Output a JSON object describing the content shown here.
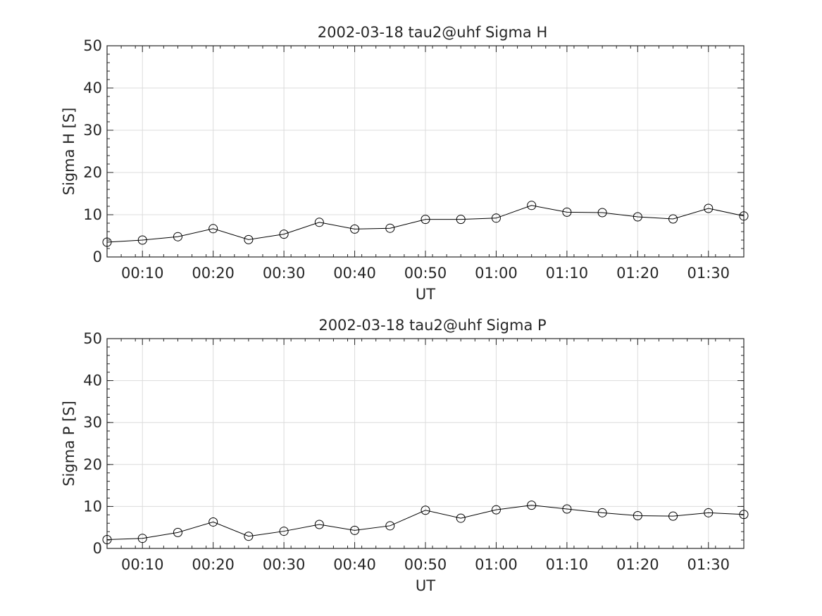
{
  "chart_data": [
    {
      "type": "line",
      "title": "2002-03-18  tau2@uhf Sigma H",
      "xlabel": "UT",
      "ylabel": "Sigma H [S]",
      "x": [
        "00:05",
        "00:10",
        "00:15",
        "00:20",
        "00:25",
        "00:30",
        "00:35",
        "00:40",
        "00:45",
        "00:50",
        "00:55",
        "01:00",
        "01:05",
        "01:10",
        "01:15",
        "01:20",
        "01:25",
        "01:30",
        "01:35"
      ],
      "series": [
        {
          "values": [
            3.5,
            4.0,
            4.8,
            6.7,
            4.1,
            5.4,
            8.2,
            6.6,
            6.8,
            8.9,
            8.9,
            9.2,
            12.2,
            10.6,
            10.5,
            9.5,
            9.0,
            11.5,
            9.7
          ]
        }
      ],
      "xlim": [
        "00:05",
        "01:35"
      ],
      "ylim": [
        0,
        50
      ],
      "xticks": [
        "00:10",
        "00:20",
        "00:30",
        "00:40",
        "00:50",
        "01:00",
        "01:10",
        "01:20",
        "01:30"
      ],
      "yticks": [
        0,
        10,
        20,
        30,
        40,
        50
      ],
      "grid": true,
      "marker": "open-circle",
      "line_color": "#000000"
    },
    {
      "type": "line",
      "title": "2002-03-18  tau2@uhf Sigma P",
      "xlabel": "UT",
      "ylabel": "Sigma P [S]",
      "x": [
        "00:05",
        "00:10",
        "00:15",
        "00:20",
        "00:25",
        "00:30",
        "00:35",
        "00:40",
        "00:45",
        "00:50",
        "00:55",
        "01:00",
        "01:05",
        "01:10",
        "01:15",
        "01:20",
        "01:25",
        "01:30",
        "01:35"
      ],
      "series": [
        {
          "values": [
            2.1,
            2.4,
            3.8,
            6.3,
            2.9,
            4.1,
            5.7,
            4.3,
            5.4,
            9.1,
            7.2,
            9.2,
            10.3,
            9.4,
            8.5,
            7.8,
            7.7,
            8.5,
            8.1
          ]
        }
      ],
      "xlim": [
        "00:05",
        "01:35"
      ],
      "ylim": [
        0,
        50
      ],
      "xticks": [
        "00:10",
        "00:20",
        "00:30",
        "00:40",
        "00:50",
        "01:00",
        "01:10",
        "01:20",
        "01:30"
      ],
      "yticks": [
        0,
        10,
        20,
        30,
        40,
        50
      ],
      "grid": true,
      "marker": "open-circle",
      "line_color": "#000000"
    }
  ]
}
